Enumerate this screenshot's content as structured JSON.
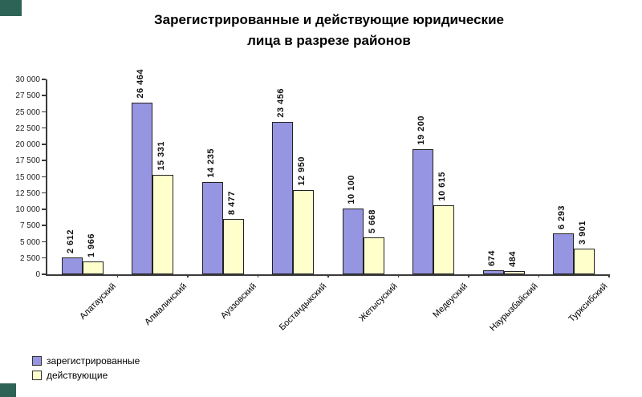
{
  "title": {
    "line1": "Зарегистрированные и действующие юридические",
    "line2": "лица в разрезе районов"
  },
  "decorations": {
    "corner_square_color": "#2d6356"
  },
  "chart_data": {
    "type": "bar",
    "title": "Зарегистрированные и действующие юридические лица в разрезе районов",
    "categories": [
      "Алатауский",
      "Алмалинский",
      "Ауэзовский",
      "Бостандыкский",
      "Жетысуский",
      "Медеуский",
      "Наурызбайский",
      "Турксибский"
    ],
    "series": [
      {
        "name": "зарегистрированные",
        "color": "#9695e2",
        "values": [
          2612,
          26464,
          14235,
          23456,
          10100,
          19200,
          674,
          6293
        ],
        "labels": [
          "2 612",
          "26 464",
          "14 235",
          "23 456",
          "10 100",
          "19 200",
          "674",
          "6 293"
        ]
      },
      {
        "name": "действующие",
        "color": "#ffffcc",
        "values": [
          1966,
          15331,
          8477,
          12950,
          5668,
          10615,
          484,
          3901
        ],
        "labels": [
          "1 966",
          "15 331",
          "8 477",
          "12 950",
          "5 668",
          "10 615",
          "484",
          "3 901"
        ]
      }
    ],
    "ylim": [
      0,
      30000
    ],
    "ytick_step": 2500,
    "yticks": [
      {
        "value": 0,
        "label": "0"
      },
      {
        "value": 2500,
        "label": "2 500"
      },
      {
        "value": 5000,
        "label": "5 000"
      },
      {
        "value": 7500,
        "label": "7 500"
      },
      {
        "value": 10000,
        "label": "10 000"
      },
      {
        "value": 12500,
        "label": "12 500"
      },
      {
        "value": 15000,
        "label": "15 000"
      },
      {
        "value": 17500,
        "label": "17 500"
      },
      {
        "value": 20000,
        "label": "20 000"
      },
      {
        "value": 22500,
        "label": "22 500"
      },
      {
        "value": 25000,
        "label": "25 000"
      },
      {
        "value": 27500,
        "label": "27 500"
      },
      {
        "value": 30000,
        "label": "30 000"
      }
    ],
    "grid": false,
    "value_labels_rotation": 90,
    "xlabel_rotation": 45,
    "legend_position": "bottom-left"
  }
}
